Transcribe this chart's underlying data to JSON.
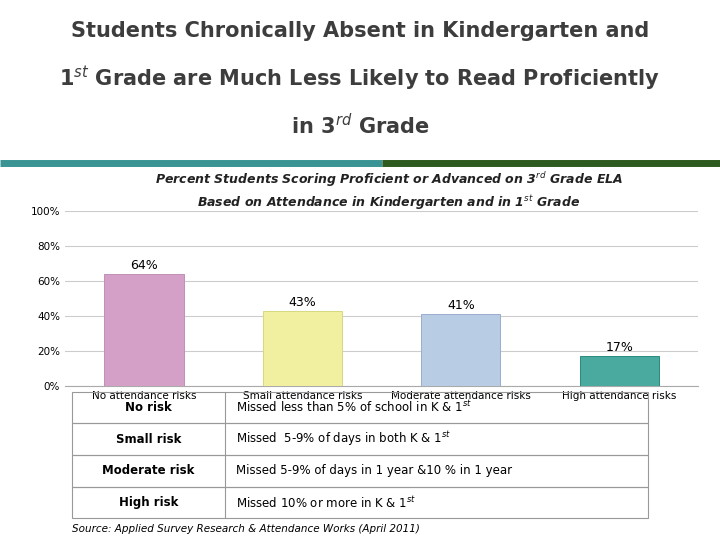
{
  "categories": [
    "No attendance risks",
    "Small attendance risks",
    "Moderate attendance risks",
    "High attendance risks"
  ],
  "values": [
    64,
    43,
    41,
    17
  ],
  "bar_colors": [
    "#d4a0c8",
    "#f0f0a0",
    "#b8cce4",
    "#4baaa0"
  ],
  "bar_edge_colors": [
    "#c090b8",
    "#d8d880",
    "#9aaccf",
    "#2a8a80"
  ],
  "ytick_values": [
    0,
    20,
    40,
    60,
    80,
    100
  ],
  "ytick_labels": [
    "0%",
    "20%",
    "40%",
    "60%",
    "80%",
    "100%"
  ],
  "title_bg_color": "#dce9f5",
  "title_text_color": "#3d3d3d",
  "stripe_left_color": "#3a9494",
  "stripe_right_color": "#2d5a1e",
  "bg_color": "#ffffff",
  "table_rows": [
    [
      "No risk",
      "Missed less than 5% of school in K & 1$^{st}$"
    ],
    [
      "Small risk",
      "Missed  5-9% of days in both K & 1$^{st}$"
    ],
    [
      "Moderate risk",
      "Missed 5-9% of days in 1 year &10 % in 1 year"
    ],
    [
      "High risk",
      "Missed 10% or more in K & 1$^{st}$"
    ]
  ],
  "source_text": "Source: Applied Survey Research & Attendance Works (April 2011)",
  "grid_color": "#cccccc",
  "title_fontsize": 15,
  "subtitle_fontsize": 9,
  "axis_fontsize": 7.5,
  "bar_label_fontsize": 9,
  "table_fontsize": 8.5
}
